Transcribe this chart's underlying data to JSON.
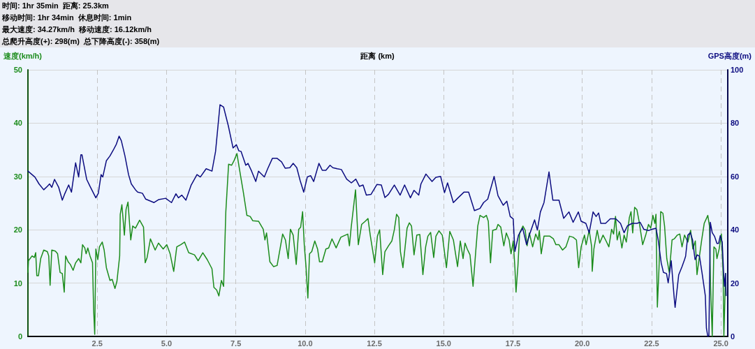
{
  "chart_data": {
    "type": "line",
    "annotations": [
      "时间: 1hr 35min  距离: 25.3km",
      "移动时间: 1hr 34min  休息时间: 1min",
      "最大速度: 34.27km/h  移动速度: 16.12km/h",
      "总爬升高度(+): 298(m)  总下降高度(-): 358(m)"
    ],
    "xlabel": "距离 (km)",
    "ylabel": "速度(km/h)",
    "y2label": "GPS高度(m)",
    "xlim": [
      0,
      25.25
    ],
    "xticks": [
      2.5,
      {
        "value": 5,
        "label": "5.0"
      },
      7.5,
      {
        "value": 10,
        "label": "10.0"
      },
      12.5,
      {
        "value": 15,
        "label": "15.0"
      },
      17.5,
      {
        "value": 20,
        "label": "20.0"
      },
      22.5,
      {
        "value": 25,
        "label": "25.0"
      }
    ],
    "ylim": [
      0,
      50
    ],
    "yticks": [
      0,
      10,
      20,
      30,
      40,
      50
    ],
    "y2lim": [
      0,
      100
    ],
    "y2ticks": [
      0,
      20,
      40,
      60,
      80,
      100
    ],
    "grid": true,
    "marker": "none",
    "line_style": "solid",
    "series": [
      {
        "color": "#1c8c1c",
        "x": [
          0.0,
          0.02,
          0.15,
          0.23,
          0.28,
          0.32,
          0.38,
          0.46,
          0.57,
          0.7,
          0.75,
          0.8,
          0.86,
          0.99,
          1.07,
          1.16,
          1.24,
          1.31,
          1.36,
          1.45,
          1.53,
          1.63,
          1.72,
          1.83,
          1.91,
          1.97,
          2.05,
          2.1,
          2.16,
          2.24,
          2.33,
          2.37,
          2.41,
          2.45,
          2.52,
          2.58,
          2.68,
          2.75,
          2.83,
          2.96,
          3.04,
          3.14,
          3.21,
          3.31,
          3.33,
          3.39,
          3.48,
          3.54,
          3.61,
          3.71,
          3.78,
          3.88,
          4.03,
          4.17,
          4.23,
          4.3,
          4.42,
          4.59,
          4.71,
          4.88,
          5.01,
          5.13,
          5.26,
          5.37,
          5.51,
          5.65,
          5.8,
          6.01,
          6.14,
          6.31,
          6.47,
          6.64,
          6.71,
          6.81,
          6.89,
          6.98,
          7.06,
          7.14,
          7.24,
          7.35,
          7.44,
          7.54,
          7.65,
          7.77,
          7.9,
          8.02,
          8.11,
          8.32,
          8.49,
          8.55,
          8.61,
          8.73,
          8.86,
          8.99,
          9.19,
          9.29,
          9.39,
          9.47,
          9.57,
          9.68,
          9.77,
          9.84,
          9.91,
          9.97,
          10.03,
          10.1,
          10.16,
          10.24,
          10.35,
          10.45,
          10.52,
          10.62,
          10.75,
          10.85,
          10.97,
          11.12,
          11.29,
          11.37,
          11.54,
          11.6,
          11.66,
          11.82,
          11.92,
          12.04,
          12.17,
          12.27,
          12.35,
          12.51,
          12.61,
          12.69,
          12.8,
          12.88,
          13.01,
          13.13,
          13.22,
          13.3,
          13.38,
          13.44,
          13.53,
          13.68,
          13.76,
          13.84,
          13.93,
          14.03,
          14.14,
          14.25,
          14.35,
          14.43,
          14.53,
          14.64,
          14.72,
          14.83,
          14.95,
          15.1,
          15.22,
          15.35,
          15.5,
          15.6,
          15.7,
          15.77,
          15.85,
          15.95,
          16.06,
          16.15,
          16.23,
          16.31,
          16.44,
          16.54,
          16.61,
          16.69,
          16.77,
          16.9,
          16.96,
          17.06,
          17.17,
          17.26,
          17.36,
          17.43,
          17.51,
          17.57,
          17.61,
          17.68,
          17.74,
          17.86,
          17.94,
          18.01,
          18.09,
          18.21,
          18.32,
          18.41,
          18.45,
          18.52,
          18.62,
          18.83,
          18.96,
          19.05,
          19.16,
          19.29,
          19.41,
          19.54,
          19.67,
          19.79,
          19.83,
          19.87,
          19.96,
          20.08,
          20.14,
          20.25,
          20.34,
          20.36,
          20.42,
          20.54,
          20.63,
          20.75,
          20.86,
          20.96,
          21.06,
          21.13,
          21.2,
          21.26,
          21.34,
          21.43,
          21.51,
          21.59,
          21.7,
          21.76,
          21.82,
          21.89,
          21.97,
          22.05,
          22.18,
          22.29,
          22.39,
          22.47,
          22.55,
          22.62,
          22.66,
          22.71,
          22.77,
          22.83,
          22.91,
          22.97,
          23.05,
          23.14,
          23.24,
          23.32,
          23.43,
          23.52,
          23.6,
          23.69,
          23.81,
          23.91,
          23.99,
          24.08,
          24.14,
          24.23,
          24.31,
          24.4,
          24.53,
          24.59,
          24.63,
          24.69,
          24.75,
          24.82,
          24.86,
          24.94,
          25.02,
          25.08,
          25.11,
          25.17
        ],
        "values": [
          12.0,
          14.2,
          15.1,
          14.8,
          15.7,
          11.4,
          11.4,
          14.6,
          16.2,
          15.9,
          15.1,
          9.6,
          16.2,
          16.0,
          15.5,
          12.0,
          11.8,
          8.3,
          15.1,
          14.0,
          13.5,
          12.4,
          13.8,
          14.6,
          13.8,
          17.2,
          16.6,
          15.5,
          16.6,
          15.1,
          13.8,
          5.0,
          0.4,
          16.4,
          14.4,
          16.8,
          17.7,
          16.2,
          12.9,
          10.5,
          10.7,
          9.0,
          10.3,
          15.1,
          22.9,
          24.7,
          19.0,
          23.8,
          25.2,
          18.1,
          20.7,
          20.3,
          21.8,
          20.5,
          13.8,
          14.8,
          18.3,
          16.2,
          17.5,
          16.4,
          17.2,
          15.5,
          12.2,
          16.8,
          17.2,
          17.7,
          15.7,
          15.3,
          14.2,
          15.7,
          14.4,
          12.7,
          9.2,
          8.7,
          7.6,
          10.5,
          9.4,
          23.4,
          32.3,
          32.1,
          33.0,
          34.3,
          30.8,
          27.1,
          22.7,
          22.5,
          21.7,
          21.6,
          20.1,
          18.1,
          19.4,
          14.0,
          13.1,
          13.3,
          19.2,
          18.1,
          14.6,
          20.1,
          19.0,
          13.5,
          20.1,
          20.5,
          23.4,
          17.2,
          13.3,
          7.2,
          15.5,
          15.9,
          17.9,
          16.4,
          14.0,
          14.0,
          16.4,
          16.6,
          18.3,
          16.6,
          18.6,
          18.8,
          19.2,
          17.0,
          20.3,
          27.5,
          17.2,
          21.0,
          21.6,
          22.1,
          19.0,
          13.8,
          18.8,
          20.0,
          11.6,
          15.9,
          17.0,
          17.9,
          20.0,
          22.9,
          22.3,
          15.9,
          12.9,
          20.3,
          21.3,
          20.7,
          15.3,
          19.0,
          19.1,
          11.6,
          16.8,
          18.8,
          19.5,
          14.8,
          18.8,
          19.8,
          19.0,
          12.9,
          19.7,
          18.1,
          13.1,
          17.9,
          14.6,
          17.5,
          16.4,
          15.3,
          9.4,
          15.5,
          20.7,
          22.7,
          22.3,
          22.7,
          21.6,
          13.8,
          19.9,
          20.1,
          21.0,
          20.5,
          17.0,
          19.4,
          18.1,
          15.5,
          17.9,
          12.9,
          8.3,
          13.3,
          19.4,
          20.7,
          19.9,
          17.0,
          19.4,
          16.8,
          19.2,
          18.1,
          19.9,
          15.5,
          18.8,
          18.8,
          18.3,
          17.2,
          17.2,
          16.2,
          16.8,
          18.8,
          18.6,
          18.1,
          15.5,
          12.9,
          16.8,
          19.0,
          17.2,
          19.9,
          16.8,
          12.2,
          16.4,
          19.9,
          17.5,
          19.0,
          17.9,
          16.8,
          20.1,
          19.2,
          22.5,
          18.1,
          19.7,
          16.6,
          19.0,
          17.7,
          22.3,
          23.4,
          19.4,
          24.2,
          23.8,
          21.6,
          17.2,
          19.0,
          21.0,
          20.3,
          22.7,
          21.2,
          22.9,
          5.5,
          12.9,
          23.4,
          23.1,
          20.7,
          14.6,
          12.0,
          18.1,
          18.3,
          19.0,
          19.2,
          16.8,
          19.0,
          17.7,
          19.9,
          16.4,
          17.9,
          11.6,
          15.1,
          18.1,
          21.2,
          22.7,
          20.7,
          9.4,
          0,
          16.8,
          16.4,
          14.6,
          16.4,
          19.2,
          12.0,
          0,
          11.8
        ]
      },
      {
        "color": "#0c0c80",
        "axis": "y2",
        "x": [
          0.0,
          0.25,
          0.4,
          0.57,
          0.7,
          0.78,
          0.86,
          0.96,
          1.11,
          1.24,
          1.32,
          1.47,
          1.57,
          1.72,
          1.83,
          1.91,
          1.95,
          2.12,
          2.24,
          2.45,
          2.54,
          2.64,
          2.7,
          2.83,
          2.96,
          3.08,
          3.19,
          3.29,
          3.37,
          3.5,
          3.63,
          3.73,
          3.88,
          3.96,
          4.13,
          4.25,
          4.55,
          4.71,
          4.97,
          5.18,
          5.34,
          5.43,
          5.55,
          5.7,
          5.89,
          6.1,
          6.22,
          6.43,
          6.64,
          6.77,
          6.93,
          7.06,
          7.23,
          7.4,
          7.52,
          7.61,
          7.69,
          7.86,
          7.94,
          8.07,
          8.22,
          8.32,
          8.53,
          8.65,
          8.82,
          8.99,
          9.15,
          9.28,
          9.45,
          9.57,
          9.7,
          9.82,
          9.95,
          10.08,
          10.2,
          10.31,
          10.5,
          10.62,
          10.75,
          10.9,
          11.0,
          11.16,
          11.31,
          11.5,
          11.67,
          11.83,
          11.96,
          12.09,
          12.21,
          12.38,
          12.59,
          12.75,
          12.88,
          13.01,
          13.22,
          13.43,
          13.59,
          13.8,
          13.93,
          14.1,
          14.18,
          14.36,
          14.58,
          14.72,
          14.89,
          15.03,
          15.14,
          15.35,
          15.52,
          15.73,
          15.9,
          16.11,
          16.31,
          16.44,
          16.59,
          16.82,
          16.96,
          17.15,
          17.28,
          17.4,
          17.51,
          17.57,
          17.7,
          17.85,
          17.99,
          18.12,
          18.28,
          18.38,
          18.49,
          18.62,
          18.8,
          18.94,
          19.16,
          19.33,
          19.52,
          19.67,
          19.86,
          19.96,
          20.13,
          20.25,
          20.39,
          20.5,
          20.59,
          20.67,
          20.84,
          21.01,
          21.21,
          21.38,
          21.51,
          21.63,
          21.8,
          21.97,
          22.09,
          22.22,
          22.39,
          22.51,
          22.66,
          22.74,
          22.85,
          22.93,
          23.04,
          23.1,
          23.21,
          23.31,
          23.35,
          23.48,
          23.6,
          23.69,
          23.73,
          23.81,
          23.9,
          23.98,
          24.07,
          24.15,
          24.23,
          24.32,
          24.44,
          24.48,
          24.53,
          24.57,
          24.62,
          24.69,
          24.77,
          24.86,
          24.92,
          24.98,
          25.05,
          25.1,
          25.13,
          25.17,
          25.19
        ],
        "values": [
          62.0,
          59.8,
          57.2,
          55.0,
          56.3,
          57.2,
          55.9,
          58.9,
          55.9,
          51.1,
          53.3,
          56.8,
          54.1,
          65.1,
          59.8,
          68.1,
          68.1,
          58.9,
          56.3,
          52.0,
          53.7,
          60.7,
          59.8,
          65.9,
          67.7,
          69.9,
          72.1,
          75.1,
          73.4,
          67.7,
          60.7,
          57.2,
          55.0,
          54.1,
          53.7,
          51.5,
          50.2,
          51.3,
          51.8,
          50.2,
          53.5,
          52.0,
          53.0,
          51.1,
          56.8,
          60.7,
          59.8,
          62.9,
          62.0,
          69.4,
          86.9,
          86.0,
          79.0,
          70.7,
          71.9,
          69.6,
          69.4,
          64.2,
          64.9,
          62.0,
          58.1,
          62.0,
          59.8,
          62.9,
          66.8,
          66.8,
          65.5,
          63.1,
          63.3,
          64.9,
          63.3,
          58.5,
          54.1,
          59.8,
          60.3,
          58.1,
          64.9,
          62.3,
          62.3,
          64.2,
          63.3,
          62.9,
          62.6,
          59.0,
          57.6,
          59.0,
          56.3,
          56.8,
          53.0,
          53.3,
          57.0,
          56.8,
          52.1,
          53.3,
          56.8,
          53.0,
          56.8,
          52.0,
          54.8,
          53.0,
          57.2,
          60.9,
          58.1,
          59.7,
          60.0,
          53.9,
          57.6,
          50.2,
          52.0,
          54.1,
          54.1,
          47.2,
          48.0,
          50.2,
          51.5,
          60.0,
          52.8,
          49.2,
          50.7,
          45.0,
          44.1,
          31.9,
          38.0,
          40.6,
          34.5,
          38.9,
          43.7,
          39.9,
          46.7,
          50.2,
          61.7,
          51.1,
          51.1,
          44.3,
          46.7,
          42.8,
          46.7,
          43.2,
          42.4,
          38.9,
          46.7,
          45.0,
          46.3,
          42.4,
          42.4,
          44.1,
          44.1,
          42.4,
          38.9,
          41.5,
          42.4,
          42.4,
          42.8,
          40.2,
          39.7,
          40.2,
          40.6,
          36.2,
          27.5,
          24.0,
          23.6,
          20.1,
          28.4,
          15.3,
          10.9,
          23.1,
          26.2,
          28.8,
          30.1,
          38.0,
          38.9,
          36.2,
          28.8,
          30.6,
          30.1,
          24.0,
          15.3,
          3.1,
          0,
          0.4,
          42.8,
          38.9,
          37.6,
          34.9,
          34.9,
          37.8,
          35.4,
          24.0,
          18.8,
          23.6,
          15.3
        ]
      }
    ]
  }
}
